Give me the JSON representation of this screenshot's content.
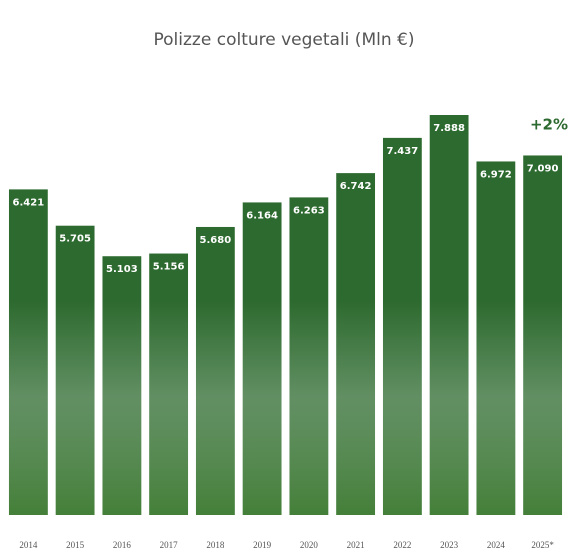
{
  "chart_data": {
    "type": "bar",
    "title": "Polizze colture vegetali (Mln €)",
    "categories": [
      "2014",
      "2015",
      "2016",
      "2017",
      "2018",
      "2019",
      "2020",
      "2021",
      "2022",
      "2023",
      "2024",
      "2025*"
    ],
    "values": [
      6421,
      5705,
      5103,
      5156,
      5680,
      6164,
      6263,
      6742,
      7437,
      7888,
      6972,
      7090
    ],
    "value_labels": [
      "6.421",
      "5.705",
      "5.103",
      "5.156",
      "5.680",
      "6.164",
      "6.263",
      "6.742",
      "7.437",
      "7.888",
      "6.972",
      "7.090"
    ],
    "color": "#2d6a2f",
    "annotation": "+2%"
  }
}
